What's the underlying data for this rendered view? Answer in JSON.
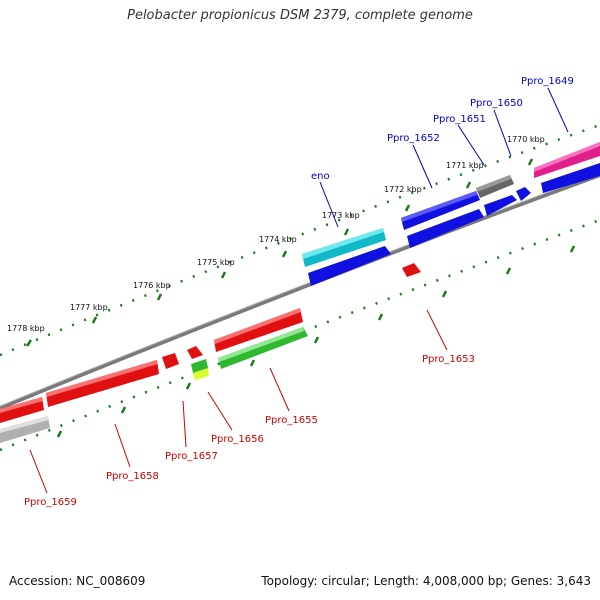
{
  "title": "Pelobacter propionicus DSM 2379, complete genome",
  "footer": {
    "accession": "Accession: NC_008609",
    "summary": "Topology: circular; Length: 4,008,000 bp; Genes: 3,643"
  },
  "colors": {
    "positive_label": "#0000cc",
    "negative_label": "#cc0000",
    "backbone": "#808080",
    "tick": "#1a7a1a"
  },
  "ticks": [
    {
      "label": "1770 kbp"
    },
    {
      "label": "1771 kbp"
    },
    {
      "label": "1772 kbp"
    },
    {
      "label": "1773 kbp"
    },
    {
      "label": "1774 kbp"
    },
    {
      "label": "1775 kbp"
    },
    {
      "label": "1776 kbp"
    },
    {
      "label": "1777 kbp"
    },
    {
      "label": "1778 kbp"
    }
  ],
  "genes_top": [
    {
      "label": "Ppro_1649",
      "color": "#e0208a"
    },
    {
      "label": "Ppro_1650",
      "color": "#1010e0"
    },
    {
      "label": "Ppro_1651",
      "color": "#1010e0"
    },
    {
      "label": "Ppro_1652",
      "color": "#1010e0"
    },
    {
      "label": "eno",
      "color": "#10b8c8"
    }
  ],
  "genes_bottom": [
    {
      "label": "Ppro_1653",
      "color": "#e01010"
    },
    {
      "label": "Ppro_1655",
      "color": "#30b830"
    },
    {
      "label": "Ppro_1656",
      "color": "#e01010"
    },
    {
      "label": "Ppro_1657",
      "color": "#e01010"
    },
    {
      "label": "Ppro_1658",
      "color": "#e01010"
    },
    {
      "label": "Ppro_1659",
      "color": "#e01010"
    }
  ]
}
